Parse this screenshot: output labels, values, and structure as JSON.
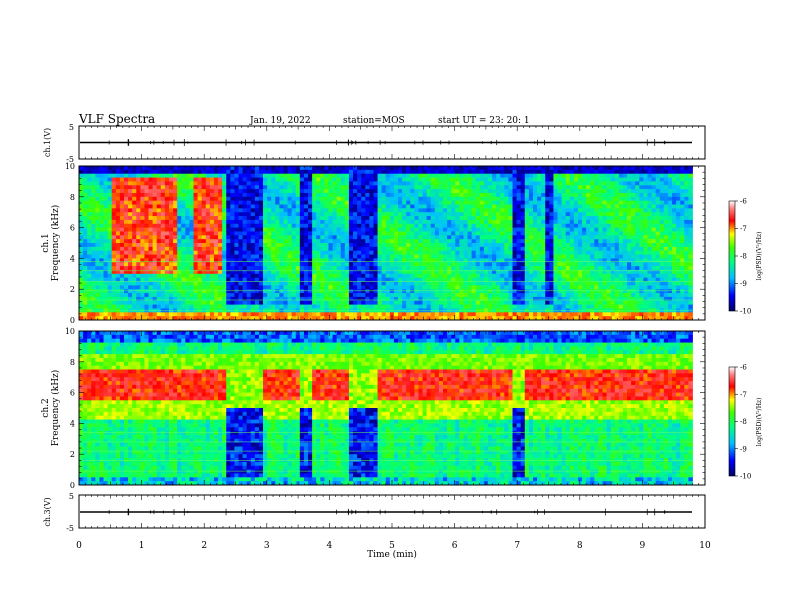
{
  "header": {
    "title": "VLF Spectra",
    "date": "Jan. 19, 2022",
    "station": "station=MOS",
    "start_ut": "start UT =  23: 20: 1"
  },
  "chart_data": [
    {
      "type": "line",
      "name": "ch1-waveform",
      "ylabel": "ch.1(V)",
      "ylim": [
        -5,
        5
      ],
      "y_ticks": [
        "5",
        "-5"
      ],
      "baseline": 0
    },
    {
      "type": "heatmap",
      "name": "ch1-spectrogram",
      "ylabel_top": "ch.1",
      "ylabel": "Frequency (kHz)",
      "ylim": [
        0,
        10
      ],
      "y_ticks": [
        "0",
        "2",
        "4",
        "6",
        "8",
        "10"
      ],
      "quiet_intervals_min": [
        [
          2.33,
          2.97
        ],
        [
          3.55,
          3.72
        ],
        [
          4.3,
          4.75
        ],
        [
          6.9,
          7.15
        ],
        [
          7.45,
          7.55
        ]
      ],
      "active_intervals_min": [
        [
          0.55,
          1.6
        ],
        [
          1.85,
          2.3
        ]
      ],
      "colorbar": {
        "label": "log(PSD)(V²/Hz)",
        "ticks": [
          "-6",
          "-7",
          "-8",
          "-9",
          "-10"
        ],
        "range": [
          -10,
          -6
        ]
      }
    },
    {
      "type": "heatmap",
      "name": "ch2-spectrogram",
      "ylabel_top": "ch.2",
      "ylabel": "Frequency (kHz)",
      "ylim": [
        0,
        10
      ],
      "y_ticks": [
        "0",
        "2",
        "4",
        "6",
        "8",
        "10"
      ],
      "band_khz": [
        5.5,
        7.6
      ],
      "quiet_intervals_min": [
        [
          2.33,
          2.97
        ],
        [
          3.55,
          3.72
        ],
        [
          4.3,
          4.75
        ],
        [
          6.9,
          7.15
        ]
      ],
      "colorbar": {
        "label": "log(PSD)(V²/Hz)",
        "ticks": [
          "-6",
          "-7",
          "-8",
          "-9",
          "-10"
        ],
        "range": [
          -10,
          -6
        ]
      }
    },
    {
      "type": "line",
      "name": "ch3-waveform",
      "ylabel": "ch.3(V)",
      "ylim": [
        -5,
        5
      ],
      "y_ticks": [
        "5",
        "-5"
      ],
      "baseline": 0
    }
  ],
  "x_axis": {
    "label": "Time (min)",
    "ticks": [
      "0",
      "1",
      "2",
      "3",
      "4",
      "5",
      "6",
      "7",
      "8",
      "9",
      "10"
    ],
    "xlim": [
      0,
      10
    ],
    "data_end_min": 9.8
  },
  "colors": {
    "colormap": [
      "#000040",
      "#0000ff",
      "#00ffff",
      "#00ff00",
      "#ffff00",
      "#ff0000",
      "#ff8080",
      "#ffffff"
    ]
  }
}
